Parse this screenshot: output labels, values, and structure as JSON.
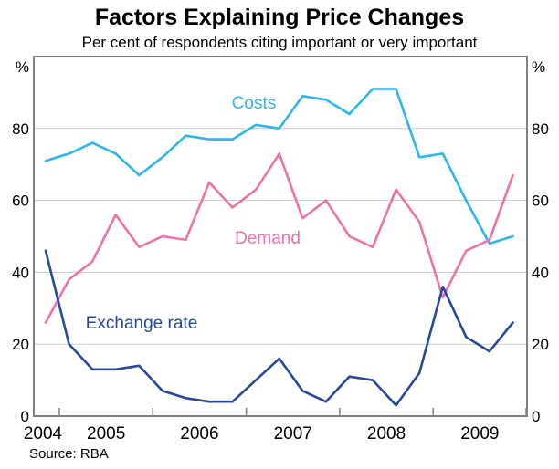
{
  "chart_data": {
    "type": "line",
    "title": "Factors Explaining Price Changes",
    "subtitle": "Per cent of respondents citing important or very important",
    "unit": "%",
    "source": "Source: RBA",
    "x": [
      "2004 Q4",
      "2005 Q1",
      "2005 Q2",
      "2005 Q3",
      "2005 Q4",
      "2006 Q1",
      "2006 Q2",
      "2006 Q3",
      "2006 Q4",
      "2007 Q1",
      "2007 Q2",
      "2007 Q3",
      "2007 Q4",
      "2008 Q1",
      "2008 Q2",
      "2008 Q3",
      "2008 Q4",
      "2009 Q1",
      "2009 Q2",
      "2009 Q3",
      "2009 Q4"
    ],
    "x_axis_year_labels": [
      "2004",
      "2005",
      "2006",
      "2007",
      "2008",
      "2009"
    ],
    "yticks": [
      0,
      20,
      40,
      60,
      80
    ],
    "ylim": [
      0,
      100
    ],
    "grid": "horizontal",
    "legend_position": "inline-labels",
    "series": [
      {
        "name": "Costs",
        "color": "#2CB6E9",
        "values": [
          71,
          73,
          76,
          73,
          67,
          72,
          78,
          77,
          77,
          81,
          80,
          89,
          88,
          84,
          91,
          91,
          72,
          73,
          60,
          48,
          50
        ]
      },
      {
        "name": "Demand",
        "color": "#EE71A8",
        "values": [
          26,
          38,
          43,
          56,
          47,
          50,
          49,
          65,
          58,
          63,
          73,
          55,
          60,
          50,
          47,
          63,
          54,
          33,
          46,
          49,
          67
        ]
      },
      {
        "name": "Exchange rate",
        "color": "#27489B",
        "values": [
          46,
          20,
          13,
          13,
          14,
          7,
          5,
          4,
          4,
          10,
          16,
          7,
          4,
          11,
          10,
          3,
          12,
          36,
          22,
          18,
          26
        ]
      }
    ],
    "colors": {
      "grid": "#C9C9C9",
      "border": "#7F7F7F",
      "text": "#000000",
      "background": "#FFFFFF"
    }
  }
}
